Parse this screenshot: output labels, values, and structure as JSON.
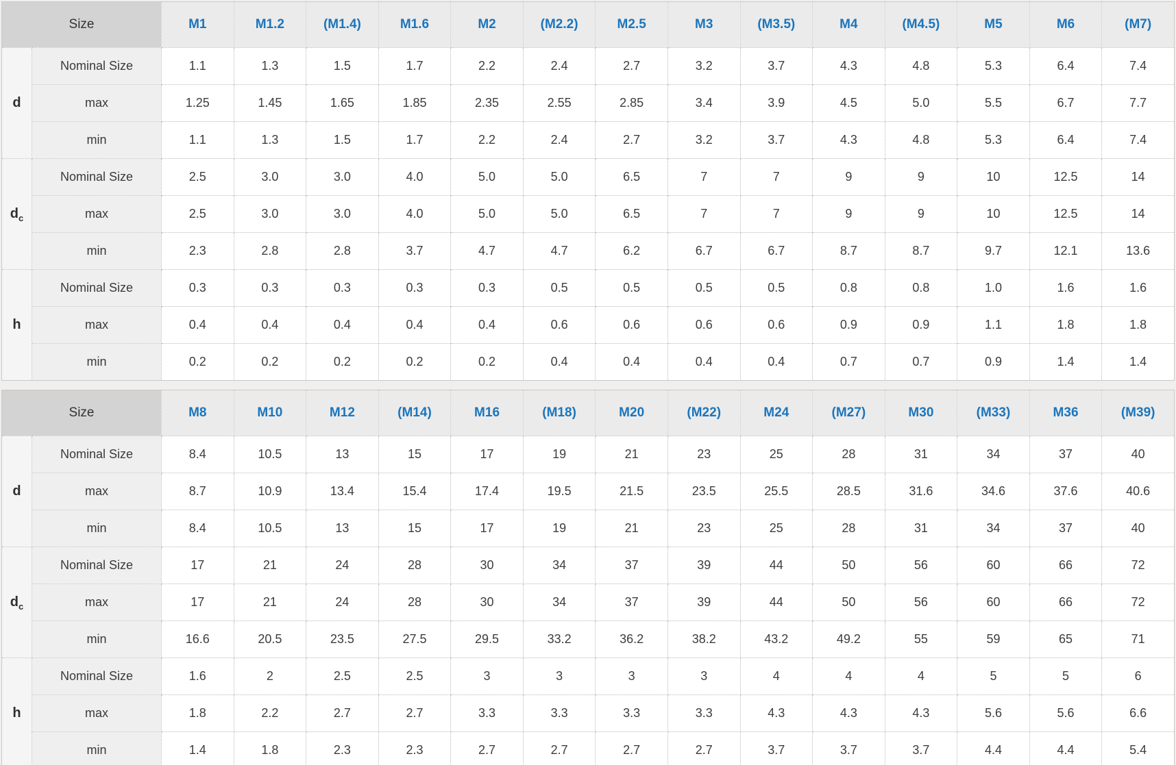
{
  "header": {
    "size_label": "Size"
  },
  "colors": {
    "link_blue": "#1b75bc",
    "size_cell_bg": "#d3d3d3",
    "column_header_bg": "#ebebeb",
    "group_label_bg": "#f5f5f5",
    "row_label_bg": "#efefef",
    "page_bg": "#f0efee",
    "body_text": "#3d3d3d"
  },
  "tables": [
    {
      "name": "small-sizes",
      "columns": [
        "M1",
        "M1.2",
        "(M1.4)",
        "M1.6",
        "M2",
        "(M2.2)",
        "M2.5",
        "M3",
        "(M3.5)",
        "M4",
        "(M4.5)",
        "M5",
        "M6",
        "(M7)"
      ],
      "groups": [
        {
          "label": "d",
          "label_sub": "",
          "rows": [
            {
              "label": "Nominal Size",
              "values": [
                "1.1",
                "1.3",
                "1.5",
                "1.7",
                "2.2",
                "2.4",
                "2.7",
                "3.2",
                "3.7",
                "4.3",
                "4.8",
                "5.3",
                "6.4",
                "7.4"
              ]
            },
            {
              "label": "max",
              "values": [
                "1.25",
                "1.45",
                "1.65",
                "1.85",
                "2.35",
                "2.55",
                "2.85",
                "3.4",
                "3.9",
                "4.5",
                "5.0",
                "5.5",
                "6.7",
                "7.7"
              ]
            },
            {
              "label": "min",
              "values": [
                "1.1",
                "1.3",
                "1.5",
                "1.7",
                "2.2",
                "2.4",
                "2.7",
                "3.2",
                "3.7",
                "4.3",
                "4.8",
                "5.3",
                "6.4",
                "7.4"
              ]
            }
          ]
        },
        {
          "label": "d",
          "label_sub": "c",
          "rows": [
            {
              "label": "Nominal Size",
              "values": [
                "2.5",
                "3.0",
                "3.0",
                "4.0",
                "5.0",
                "5.0",
                "6.5",
                "7",
                "7",
                "9",
                "9",
                "10",
                "12.5",
                "14"
              ]
            },
            {
              "label": "max",
              "values": [
                "2.5",
                "3.0",
                "3.0",
                "4.0",
                "5.0",
                "5.0",
                "6.5",
                "7",
                "7",
                "9",
                "9",
                "10",
                "12.5",
                "14"
              ]
            },
            {
              "label": "min",
              "values": [
                "2.3",
                "2.8",
                "2.8",
                "3.7",
                "4.7",
                "4.7",
                "6.2",
                "6.7",
                "6.7",
                "8.7",
                "8.7",
                "9.7",
                "12.1",
                "13.6"
              ]
            }
          ]
        },
        {
          "label": "h",
          "label_sub": "",
          "rows": [
            {
              "label": "Nominal Size",
              "values": [
                "0.3",
                "0.3",
                "0.3",
                "0.3",
                "0.3",
                "0.5",
                "0.5",
                "0.5",
                "0.5",
                "0.8",
                "0.8",
                "1.0",
                "1.6",
                "1.6"
              ]
            },
            {
              "label": "max",
              "values": [
                "0.4",
                "0.4",
                "0.4",
                "0.4",
                "0.4",
                "0.6",
                "0.6",
                "0.6",
                "0.6",
                "0.9",
                "0.9",
                "1.1",
                "1.8",
                "1.8"
              ]
            },
            {
              "label": "min",
              "values": [
                "0.2",
                "0.2",
                "0.2",
                "0.2",
                "0.2",
                "0.4",
                "0.4",
                "0.4",
                "0.4",
                "0.7",
                "0.7",
                "0.9",
                "1.4",
                "1.4"
              ]
            }
          ]
        }
      ]
    },
    {
      "name": "large-sizes",
      "columns": [
        "M8",
        "M10",
        "M12",
        "(M14)",
        "M16",
        "(M18)",
        "M20",
        "(M22)",
        "M24",
        "(M27)",
        "M30",
        "(M33)",
        "M36",
        "(M39)"
      ],
      "groups": [
        {
          "label": "d",
          "label_sub": "",
          "rows": [
            {
              "label": "Nominal Size",
              "values": [
                "8.4",
                "10.5",
                "13",
                "15",
                "17",
                "19",
                "21",
                "23",
                "25",
                "28",
                "31",
                "34",
                "37",
                "40"
              ]
            },
            {
              "label": "max",
              "values": [
                "8.7",
                "10.9",
                "13.4",
                "15.4",
                "17.4",
                "19.5",
                "21.5",
                "23.5",
                "25.5",
                "28.5",
                "31.6",
                "34.6",
                "37.6",
                "40.6"
              ]
            },
            {
              "label": "min",
              "values": [
                "8.4",
                "10.5",
                "13",
                "15",
                "17",
                "19",
                "21",
                "23",
                "25",
                "28",
                "31",
                "34",
                "37",
                "40"
              ]
            }
          ]
        },
        {
          "label": "d",
          "label_sub": "c",
          "rows": [
            {
              "label": "Nominal Size",
              "values": [
                "17",
                "21",
                "24",
                "28",
                "30",
                "34",
                "37",
                "39",
                "44",
                "50",
                "56",
                "60",
                "66",
                "72"
              ]
            },
            {
              "label": "max",
              "values": [
                "17",
                "21",
                "24",
                "28",
                "30",
                "34",
                "37",
                "39",
                "44",
                "50",
                "56",
                "60",
                "66",
                "72"
              ]
            },
            {
              "label": "min",
              "values": [
                "16.6",
                "20.5",
                "23.5",
                "27.5",
                "29.5",
                "33.2",
                "36.2",
                "38.2",
                "43.2",
                "49.2",
                "55",
                "59",
                "65",
                "71"
              ]
            }
          ]
        },
        {
          "label": "h",
          "label_sub": "",
          "rows": [
            {
              "label": "Nominal Size",
              "values": [
                "1.6",
                "2",
                "2.5",
                "2.5",
                "3",
                "3",
                "3",
                "3",
                "4",
                "4",
                "4",
                "5",
                "5",
                "6"
              ]
            },
            {
              "label": "max",
              "values": [
                "1.8",
                "2.2",
                "2.7",
                "2.7",
                "3.3",
                "3.3",
                "3.3",
                "3.3",
                "4.3",
                "4.3",
                "4.3",
                "5.6",
                "5.6",
                "6.6"
              ]
            },
            {
              "label": "min",
              "values": [
                "1.4",
                "1.8",
                "2.3",
                "2.3",
                "2.7",
                "2.7",
                "2.7",
                "2.7",
                "3.7",
                "3.7",
                "3.7",
                "4.4",
                "4.4",
                "5.4"
              ]
            }
          ]
        }
      ]
    }
  ]
}
